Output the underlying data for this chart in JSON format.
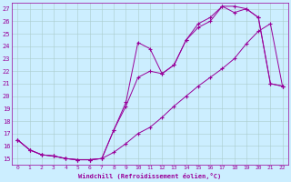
{
  "xlabel": "Windchill (Refroidissement éolien,°C)",
  "bg_color": "#cceeff",
  "line_color": "#990099",
  "grid_color": "#aacccc",
  "xlim": [
    -0.5,
    22.5
  ],
  "ylim": [
    14.5,
    27.5
  ],
  "xticks": [
    0,
    1,
    2,
    3,
    4,
    5,
    6,
    7,
    8,
    9,
    10,
    11,
    12,
    13,
    14,
    15,
    16,
    17,
    18,
    19,
    20,
    21,
    22
  ],
  "yticks": [
    15,
    16,
    17,
    18,
    19,
    20,
    21,
    22,
    23,
    24,
    25,
    26,
    27
  ],
  "line1_x": [
    0,
    1,
    2,
    3,
    4,
    5,
    6,
    7,
    8,
    9,
    10,
    11,
    12,
    13,
    14,
    15,
    16,
    17,
    18,
    19,
    20,
    21,
    22
  ],
  "line1_y": [
    16.5,
    15.7,
    15.3,
    15.2,
    15.0,
    14.9,
    14.9,
    15.0,
    17.3,
    19.2,
    21.5,
    22.0,
    21.8,
    22.5,
    24.5,
    25.8,
    26.3,
    27.2,
    26.7,
    27.0,
    26.3,
    21.0,
    20.8
  ],
  "line2_x": [
    0,
    1,
    2,
    3,
    4,
    5,
    6,
    7,
    8,
    9,
    10,
    11,
    12,
    13,
    14,
    15,
    16,
    17,
    18,
    19,
    20,
    21,
    22
  ],
  "line2_y": [
    16.5,
    15.7,
    15.3,
    15.2,
    15.0,
    14.9,
    14.9,
    15.0,
    17.3,
    19.5,
    24.3,
    23.8,
    21.8,
    22.5,
    24.5,
    25.5,
    26.0,
    27.2,
    27.2,
    27.0,
    26.3,
    21.0,
    20.8
  ],
  "line3_x": [
    0,
    1,
    2,
    3,
    4,
    5,
    6,
    7,
    8,
    9,
    10,
    11,
    12,
    13,
    14,
    15,
    16,
    17,
    18,
    19,
    20,
    21,
    22
  ],
  "line3_y": [
    16.5,
    15.7,
    15.3,
    15.2,
    15.0,
    14.9,
    14.9,
    15.0,
    15.5,
    16.2,
    17.0,
    17.5,
    18.3,
    19.2,
    20.0,
    20.8,
    21.5,
    22.2,
    23.0,
    24.2,
    25.2,
    25.8,
    20.8
  ]
}
